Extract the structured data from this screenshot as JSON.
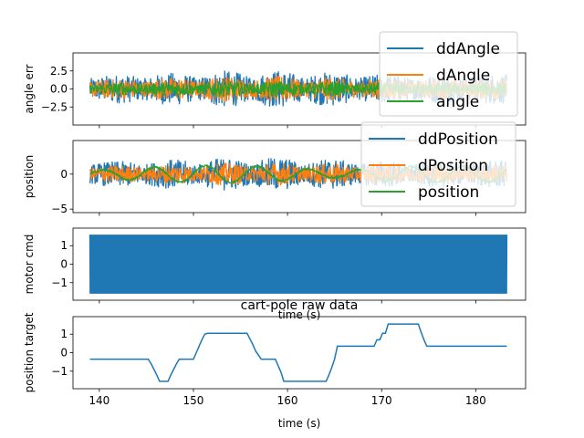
{
  "chart_data": [
    {
      "type": "line",
      "ylabel": "angle err",
      "ylim": [
        -5,
        5
      ],
      "xlim": [
        137.2,
        185.3
      ],
      "yticks": [
        {
          "v": 2.5,
          "label": "2.5"
        },
        {
          "v": 0,
          "label": "0.0"
        },
        {
          "v": -2.5,
          "label": "−2.5"
        }
      ],
      "legend_position": "top-right",
      "series": [
        {
          "name": "ddAngle",
          "color": "#1f77b4",
          "style": "noise",
          "amplitude": 2.6
        },
        {
          "name": "dAngle",
          "color": "#ff7f0e",
          "style": "noise",
          "amplitude": 1.8
        },
        {
          "name": "angle",
          "color": "#2ca02c",
          "style": "noise",
          "amplitude": 1.1
        }
      ]
    },
    {
      "type": "line",
      "ylabel": "position",
      "ylim": [
        -5.5,
        4.8
      ],
      "xlim": [
        137.2,
        185.3
      ],
      "yticks": [
        {
          "v": 0,
          "label": "0"
        },
        {
          "v": -5,
          "label": "−5"
        }
      ],
      "legend_position": "top-right",
      "series": [
        {
          "name": "ddPosition",
          "color": "#1f77b4",
          "style": "noise",
          "amplitude": 2.4
        },
        {
          "name": "dPosition",
          "color": "#ff7f0e",
          "style": "noise",
          "amplitude": 1.6
        },
        {
          "name": "position",
          "color": "#2ca02c",
          "style": "wave",
          "amplitude": 1.2
        }
      ]
    },
    {
      "type": "line",
      "ylabel": "motor cmd",
      "xlabel": "time (s)",
      "ylim": [
        -1.95,
        1.95
      ],
      "xlim": [
        137.2,
        185.3
      ],
      "yticks": [
        {
          "v": 1,
          "label": "1"
        },
        {
          "v": 0,
          "label": "0"
        },
        {
          "v": -1,
          "label": "−1"
        }
      ],
      "series": [
        {
          "name": "",
          "color": "#1f77b4",
          "style": "band",
          "x_range": [
            139,
            183.3
          ],
          "y_range": [
            -1.6,
            1.6
          ]
        }
      ]
    },
    {
      "type": "line",
      "title": "cart-pole raw data",
      "ylabel": "position target",
      "xlabel": "time (s)",
      "xlim": [
        137.2,
        185.3
      ],
      "ylim": [
        -1.95,
        1.95
      ],
      "xticks": [
        {
          "v": 140,
          "label": "140"
        },
        {
          "v": 150,
          "label": "150"
        },
        {
          "v": 160,
          "label": "160"
        },
        {
          "v": 170,
          "label": "170"
        },
        {
          "v": 180,
          "label": "180"
        }
      ],
      "yticks": [
        {
          "v": 1,
          "label": "1"
        },
        {
          "v": 0,
          "label": "0"
        },
        {
          "v": -1,
          "label": "−1"
        }
      ],
      "series": [
        {
          "name": "",
          "color": "#1f77b4",
          "x": [
            139.0,
            145.2,
            145.5,
            145.8,
            146.1,
            146.4,
            147.3,
            147.6,
            147.9,
            148.2,
            148.5,
            150.0,
            150.3,
            150.6,
            150.9,
            151.2,
            151.5,
            155.7,
            156.0,
            156.3,
            156.6,
            157.2,
            158.7,
            159.0,
            159.3,
            159.6,
            164.1,
            164.4,
            164.7,
            165.0,
            165.3,
            169.2,
            169.5,
            169.8,
            170.1,
            170.4,
            170.7,
            173.9,
            174.2,
            174.5,
            174.8,
            175.1,
            183.3
          ],
          "y": [
            -0.35,
            -0.35,
            -0.6,
            -0.9,
            -1.2,
            -1.55,
            -1.55,
            -1.2,
            -0.9,
            -0.6,
            -0.35,
            -0.35,
            0.0,
            0.35,
            0.7,
            1.0,
            1.05,
            1.05,
            0.75,
            0.45,
            0.1,
            -0.35,
            -0.35,
            -0.7,
            -1.05,
            -1.55,
            -1.55,
            -1.2,
            -0.8,
            -0.35,
            0.35,
            0.35,
            0.7,
            0.7,
            1.05,
            1.05,
            1.55,
            1.55,
            1.1,
            0.7,
            0.35,
            0.35,
            0.35
          ]
        }
      ]
    }
  ]
}
